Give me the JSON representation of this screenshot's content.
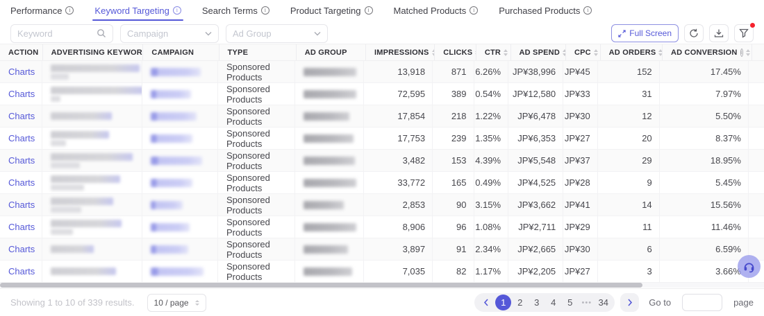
{
  "colors": {
    "accent": "#5558d8",
    "alert": "#f5222d",
    "link": "#5558d8"
  },
  "tabs": {
    "active_index": 1,
    "items": [
      {
        "label": "Performance"
      },
      {
        "label": "Keyword Targeting"
      },
      {
        "label": "Search Terms"
      },
      {
        "label": "Product Targeting"
      },
      {
        "label": "Matched Products"
      },
      {
        "label": "Purchased Products"
      }
    ]
  },
  "filters": {
    "keyword_placeholder": "Keyword",
    "campaign_placeholder": "Campaign",
    "adgroup_placeholder": "Ad Group"
  },
  "toolbar": {
    "fullscreen_label": "Full Screen",
    "icon_buttons": [
      "refresh",
      "download",
      "filter"
    ],
    "filter_alert": true
  },
  "table": {
    "action_label": "Charts",
    "type_value": "Sponsored Products",
    "columns": [
      {
        "key": "action",
        "label": "ACTION",
        "sortable": false,
        "info": false
      },
      {
        "key": "keyword",
        "label": "ADVERTISING KEYWORD",
        "sortable": false,
        "info": false
      },
      {
        "key": "campaign",
        "label": "CAMPAIGN",
        "sortable": false,
        "info": false
      },
      {
        "key": "type",
        "label": "TYPE",
        "sortable": false,
        "info": false
      },
      {
        "key": "ad_group",
        "label": "AD GROUP",
        "sortable": false,
        "info": false
      },
      {
        "key": "impressions",
        "label": "IMPRESSIONS",
        "sortable": true,
        "info": false
      },
      {
        "key": "clicks",
        "label": "CLICKS",
        "sortable": true,
        "info": false
      },
      {
        "key": "ctr",
        "label": "CTR",
        "sortable": true,
        "info": false
      },
      {
        "key": "ad_spend",
        "label": "AD SPEND",
        "sortable": true,
        "info": false
      },
      {
        "key": "cpc",
        "label": "CPC",
        "sortable": true,
        "info": false
      },
      {
        "key": "ad_orders",
        "label": "AD ORDERS",
        "sortable": true,
        "info": false
      },
      {
        "key": "ad_conversion",
        "label": "AD CONVERSION",
        "sortable": true,
        "info": true
      }
    ],
    "rows": [
      {
        "impressions": "13,918",
        "clicks": "871",
        "ctr": "6.26%",
        "ad_spend": "JP¥38,996",
        "cpc": "JP¥45",
        "ad_orders": "152",
        "ad_conversion": "17.45%",
        "keyword_blur": [
          128,
          26
        ],
        "campaign_blur": 72,
        "adgroup_blur": 76
      },
      {
        "impressions": "72,595",
        "clicks": "389",
        "ctr": "0.54%",
        "ad_spend": "JP¥12,580",
        "cpc": "JP¥33",
        "ad_orders": "31",
        "ad_conversion": "7.97%",
        "keyword_blur": [
          134,
          14
        ],
        "campaign_blur": 58,
        "adgroup_blur": 96
      },
      {
        "impressions": "17,854",
        "clicks": "218",
        "ctr": "1.22%",
        "ad_spend": "JP¥6,478",
        "cpc": "JP¥30",
        "ad_orders": "12",
        "ad_conversion": "5.50%",
        "keyword_blur": [
          88
        ],
        "campaign_blur": 66,
        "adgroup_blur": 66
      },
      {
        "impressions": "17,753",
        "clicks": "239",
        "ctr": "1.35%",
        "ad_spend": "JP¥6,353",
        "cpc": "JP¥27",
        "ad_orders": "20",
        "ad_conversion": "8.37%",
        "keyword_blur": [
          84,
          22
        ],
        "campaign_blur": 60,
        "adgroup_blur": 72
      },
      {
        "impressions": "3,482",
        "clicks": "153",
        "ctr": "4.39%",
        "ad_spend": "JP¥5,548",
        "cpc": "JP¥37",
        "ad_orders": "29",
        "ad_conversion": "18.95%",
        "keyword_blur": [
          118,
          42
        ],
        "campaign_blur": 74,
        "adgroup_blur": 74
      },
      {
        "impressions": "33,772",
        "clicks": "165",
        "ctr": "0.49%",
        "ad_spend": "JP¥4,525",
        "cpc": "JP¥28",
        "ad_orders": "9",
        "ad_conversion": "5.45%",
        "keyword_blur": [
          100,
          48
        ],
        "campaign_blur": 60,
        "adgroup_blur": 94
      },
      {
        "impressions": "2,853",
        "clicks": "90",
        "ctr": "3.15%",
        "ad_spend": "JP¥3,662",
        "cpc": "JP¥41",
        "ad_orders": "14",
        "ad_conversion": "15.56%",
        "keyword_blur": [
          90,
          44
        ],
        "campaign_blur": 46,
        "adgroup_blur": 58
      },
      {
        "impressions": "8,906",
        "clicks": "96",
        "ctr": "1.08%",
        "ad_spend": "JP¥2,711",
        "cpc": "JP¥29",
        "ad_orders": "11",
        "ad_conversion": "11.46%",
        "keyword_blur": [
          102,
          32
        ],
        "campaign_blur": 56,
        "adgroup_blur": 84
      },
      {
        "impressions": "3,897",
        "clicks": "91",
        "ctr": "2.34%",
        "ad_spend": "JP¥2,665",
        "cpc": "JP¥30",
        "ad_orders": "6",
        "ad_conversion": "6.59%",
        "keyword_blur": [
          62
        ],
        "campaign_blur": 54,
        "adgroup_blur": 64
      },
      {
        "impressions": "7,035",
        "clicks": "82",
        "ctr": "1.17%",
        "ad_spend": "JP¥2,205",
        "cpc": "JP¥27",
        "ad_orders": "3",
        "ad_conversion": "3.66%",
        "keyword_blur": [
          94
        ],
        "campaign_blur": 76,
        "adgroup_blur": 70
      }
    ]
  },
  "footer": {
    "summary": "Showing 1 to 10 of 339 results.",
    "page_size": "10 / page",
    "goto_label": "Go to",
    "page_label": "page"
  },
  "pagination": {
    "active": "1",
    "pages": [
      "1",
      "2",
      "3",
      "4",
      "5",
      "…",
      "34"
    ]
  },
  "fab": {
    "icon": "headset"
  }
}
